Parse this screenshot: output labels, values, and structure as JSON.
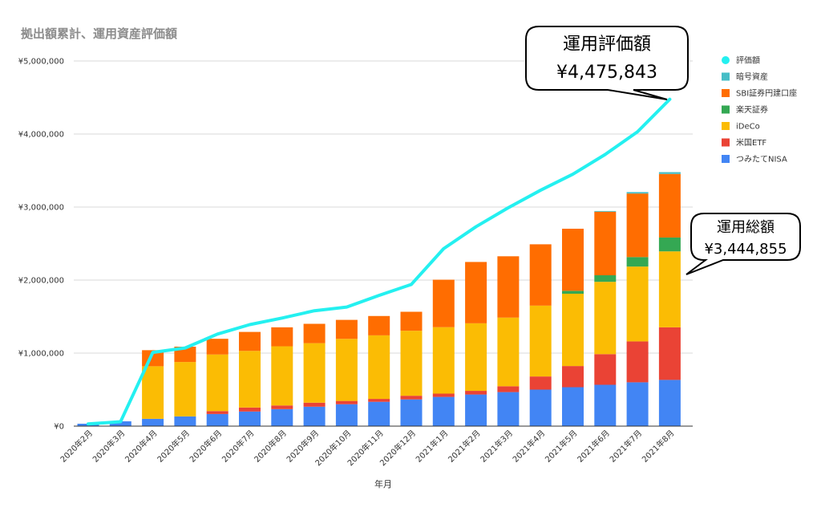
{
  "chart_data": {
    "type": "bar",
    "title": "拠出額累計、運用資産評価額",
    "xlabel": "年月",
    "ylabel": "",
    "ylim": [
      0,
      5000000
    ],
    "yticks": [
      "¥0",
      "¥1,000,000",
      "¥2,000,000",
      "¥3,000,000",
      "¥4,000,000",
      "¥5,000,000"
    ],
    "ytick_values": [
      0,
      1000000,
      2000000,
      3000000,
      4000000,
      5000000
    ],
    "grid": true,
    "stacked": true,
    "legend_position": "right",
    "categories": [
      "2020年2月",
      "2020年3月",
      "2020年4月",
      "2020年5月",
      "2020年6月",
      "2020年7月",
      "2020年8月",
      "2020年9月",
      "2020年10月",
      "2020年11月",
      "2020年12月",
      "2021年1月",
      "2021年2月",
      "2021年3月",
      "2021年4月",
      "2021年5月",
      "2021年6月",
      "2021年7月",
      "2021年8月"
    ],
    "series": [
      {
        "name": "つみたてNISA",
        "color": "#4285f4",
        "values": [
          33000,
          66000,
          100000,
          133000,
          166000,
          200000,
          233000,
          266000,
          300000,
          333000,
          366000,
          400000,
          433000,
          466000,
          500000,
          533000,
          566000,
          600000,
          633000
        ]
      },
      {
        "name": "米国ETF",
        "color": "#ea4335",
        "values": [
          0,
          0,
          0,
          0,
          40000,
          55000,
          50000,
          55000,
          45000,
          40000,
          50000,
          45000,
          50000,
          80000,
          180000,
          290000,
          420000,
          560000,
          720000
        ]
      },
      {
        "name": "iDeCo",
        "color": "#fbbc04",
        "values": [
          0,
          0,
          720000,
          745000,
          775000,
          775000,
          810000,
          815000,
          850000,
          870000,
          890000,
          910000,
          925000,
          940000,
          970000,
          990000,
          990000,
          1025000,
          1040000
        ]
      },
      {
        "name": "楽天証券",
        "color": "#34a853",
        "values": [
          0,
          0,
          0,
          0,
          0,
          0,
          0,
          0,
          0,
          0,
          0,
          0,
          0,
          0,
          0,
          40000,
          90000,
          130000,
          190000
        ]
      },
      {
        "name": "SBI証券円建口座",
        "color": "#ff6d01",
        "values": [
          0,
          0,
          220000,
          210000,
          215000,
          260000,
          260000,
          265000,
          260000,
          265000,
          260000,
          650000,
          840000,
          840000,
          840000,
          850000,
          870000,
          870000,
          870000
        ]
      },
      {
        "name": "暗号資産",
        "color": "#46bdc6",
        "values": [
          0,
          0,
          0,
          0,
          0,
          0,
          0,
          0,
          0,
          0,
          0,
          0,
          0,
          0,
          0,
          0,
          10000,
          20000,
          25000
        ]
      }
    ],
    "line_series": {
      "name": "評価額",
      "color": "#24f0f0",
      "values": [
        30000,
        60000,
        1010000,
        1070000,
        1260000,
        1390000,
        1480000,
        1580000,
        1630000,
        1790000,
        1940000,
        2430000,
        2730000,
        2990000,
        3230000,
        3450000,
        3720000,
        4030000,
        4475843
      ]
    },
    "legend_order": [
      "評価額",
      "暗号資産",
      "SBI証券円建口座",
      "楽天証券",
      "iDeCo",
      "米国ETF",
      "つみたてNISA"
    ],
    "annotations": [
      {
        "label": "運用評価額",
        "value": "¥4,475,843"
      },
      {
        "label": "運用総額",
        "value": "¥3,444,855"
      }
    ]
  }
}
